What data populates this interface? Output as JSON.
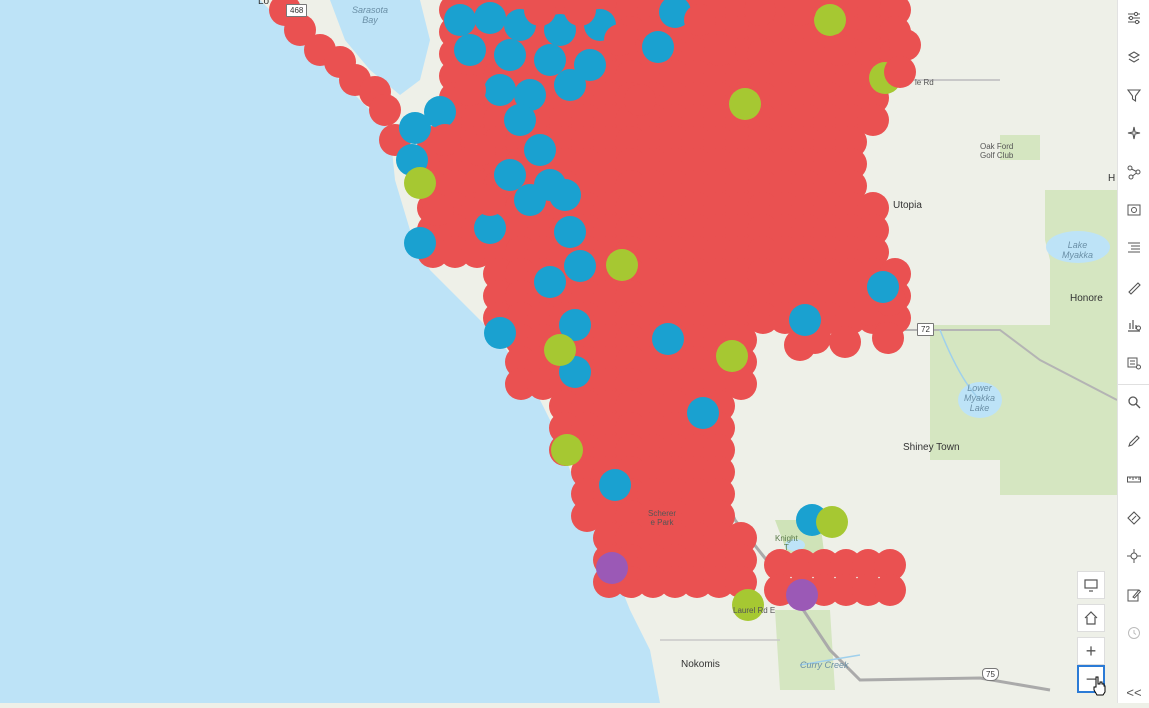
{
  "map": {
    "labels": {
      "sarasota_bay": "Sarasota\nBay",
      "oak_ford": "Oak Ford\nGolf Club",
      "utopia": "Utopia",
      "lake_myakka": "Lake\nMyakka",
      "honore": "Honore",
      "lower_myakka": "Lower\nMyakka\nLake",
      "shiney_town": "Shiney Town",
      "scherer": "Scherer\ne Park",
      "knight": "Knight\nT",
      "nokomis": "Nokomis",
      "curry_creek": "Curry Creek",
      "laurel_rd": "Laurel Rd E",
      "le_rd": "le Rd",
      "h_cut": "H",
      "lo_cut": "Lo"
    },
    "shields": {
      "r468": "468",
      "r72": "72",
      "i75": "75"
    },
    "colors": {
      "water": "#bde3f7",
      "land": "#eef0e8",
      "park": "#d5e6c1",
      "road": "#a9a9a9",
      "red": "#ea5151",
      "blue": "#1aa1d0",
      "green": "#a6c832",
      "purple": "#9b59b6"
    }
  },
  "toolbar": {
    "icons": [
      "sliders-icon",
      "map-pin-layers-icon",
      "filter-icon",
      "sparkle-icon",
      "path-icon",
      "settings-box-icon",
      "list-indent-icon",
      "paint-icon",
      "chart-settings-icon",
      "layer-settings-icon",
      "search-icon",
      "pencil-icon",
      "measure-icon",
      "compass-icon",
      "crosshair-icon",
      "edit-icon",
      "clock-icon",
      "collapse-icon"
    ],
    "collapse": "<<"
  },
  "controls": {
    "monitor": "monitor-icon",
    "home": "home-icon",
    "zoom_in": "+",
    "zoom_out": "−"
  }
}
